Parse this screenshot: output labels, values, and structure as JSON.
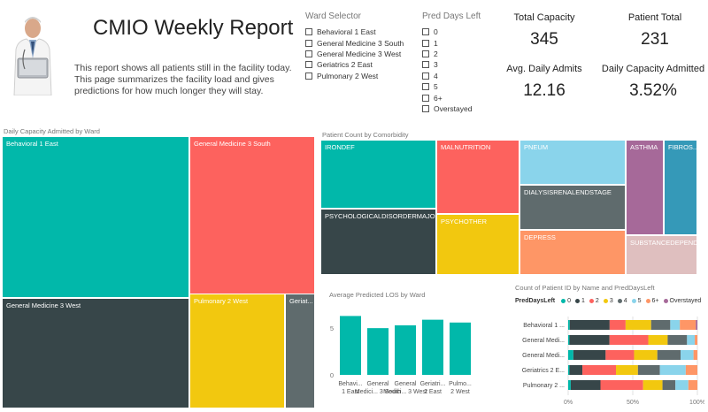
{
  "header": {
    "title": "CMIO Weekly Report",
    "description": "This report shows all patients still in the facility today.  This page summarizes the facility load and gives predictions for how much longer they will stay."
  },
  "ward_selector": {
    "title": "Ward Selector",
    "items": [
      "Behavioral 1 East",
      "General Medicine 3 South",
      "General Medicine 3 West",
      "Geriatrics 2 East",
      "Pulmonary 2 West"
    ]
  },
  "pred_days_selector": {
    "title": "Pred Days Left",
    "items": [
      "0",
      "1",
      "2",
      "3",
      "4",
      "5",
      "6+",
      "Overstayed"
    ]
  },
  "cards": {
    "total_capacity_label": "Total Capacity",
    "total_capacity_value": "345",
    "patient_total_label": "Patient Total",
    "patient_total_value": "231",
    "avg_daily_admits_label": "Avg. Daily Admits",
    "avg_daily_admits_value": "12.16",
    "daily_capacity_label": "Daily  Capacity Admitted",
    "daily_capacity_value": "3.52%"
  },
  "ward_treemap": {
    "title": "Daily Capacity Admitted by Ward",
    "cells": [
      {
        "label": "Behavioral 1 East",
        "color": "#01B8AA"
      },
      {
        "label": "General Medicine 3 South",
        "color": "#FD625E"
      },
      {
        "label": "General Medicine 3 West",
        "color": "#374649"
      },
      {
        "label": "Pulmonary 2 West",
        "color": "#F2C80F"
      },
      {
        "label": "Geriat...",
        "color": "#5F6B6D"
      }
    ]
  },
  "comorbidity_treemap": {
    "title": "Patient Count by Comorbidity",
    "cells": [
      {
        "label": "IRONDEF",
        "color": "#01B8AA"
      },
      {
        "label": "PSYCHOLOGICALDISORDERMAJOR",
        "color": "#374649"
      },
      {
        "label": "MALNUTRITION",
        "color": "#FD625E"
      },
      {
        "label": "PSYCHOTHER",
        "color": "#F2C80F"
      },
      {
        "label": "PNEUM",
        "color": "#8AD4EB"
      },
      {
        "label": "DIALYSISRENALENDSTAGE",
        "color": "#5F6B6D"
      },
      {
        "label": "DEPRESS",
        "color": "#FE9666"
      },
      {
        "label": "ASTHMA",
        "color": "#A66999"
      },
      {
        "label": "FIBROS...",
        "color": "#3599B8"
      },
      {
        "label": "SUBSTANCEDEPEND...",
        "color": "#DFBFBF"
      }
    ]
  },
  "chart_data": [
    {
      "type": "bar",
      "title": "Average Predicted LOS by Ward",
      "categories": [
        "Behavi... 1 East",
        "General Medici... 3 South",
        "General Medici... 3 West",
        "Geriatri... 2 East",
        "Pulmo... 2 West"
      ],
      "values": [
        6.3,
        5.0,
        5.3,
        5.9,
        5.6
      ],
      "ylim": [
        0,
        7
      ],
      "yticks": [
        "0",
        "5"
      ],
      "color": "#01B8AA"
    },
    {
      "type": "bar",
      "stacked": "100%",
      "orientation": "horizontal",
      "title": "Count of Patient ID by Name and PredDaysLeft",
      "legend_title": "PredDaysLeft",
      "series_names": [
        "0",
        "1",
        "2",
        "3",
        "4",
        "5",
        "6+",
        "Overstayed"
      ],
      "colors": [
        "#01B8AA",
        "#374649",
        "#FD625E",
        "#F2C80F",
        "#5F6B6D",
        "#8AD4EB",
        "#FE9666",
        "#A66999"
      ],
      "categories": [
        "Behavioral 1 ...",
        "General Medi...",
        "General Medi...",
        "Geriatrics 2 E...",
        "Pulmonary 2 ..."
      ],
      "values": [
        [
          1,
          25,
          10,
          16,
          12,
          6,
          10,
          1
        ],
        [
          1,
          31,
          30,
          15,
          15,
          6,
          2,
          0
        ],
        [
          4,
          25,
          22,
          18,
          18,
          10,
          3,
          0
        ],
        [
          1,
          10,
          26,
          17,
          17,
          20,
          9,
          0
        ],
        [
          2,
          23,
          33,
          15,
          10,
          10,
          7,
          0
        ]
      ],
      "xticks": [
        "0%",
        "50%",
        "100%"
      ]
    }
  ]
}
